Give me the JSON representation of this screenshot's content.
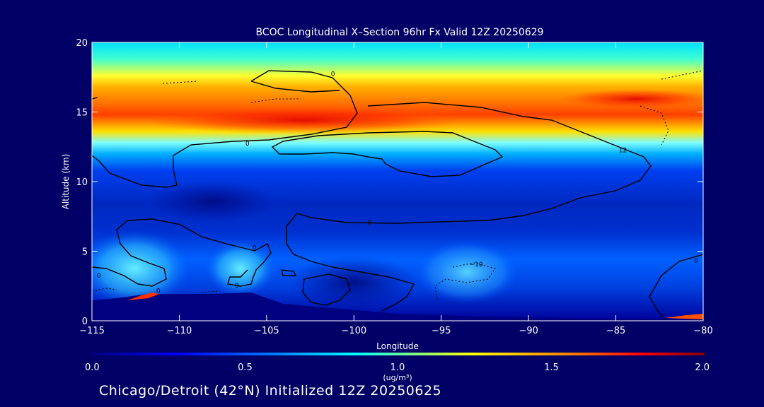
{
  "chart_data": {
    "type": "heatmap",
    "title": "BCOC Longitudinal X–Section 96hr  Fx Valid 12Z 20250629",
    "xlabel": "Longitude",
    "ylabel": "Altitude (km)",
    "xlim": [
      -115,
      -80
    ],
    "ylim": [
      0,
      20
    ],
    "x_ticks": [
      -115,
      -110,
      -105,
      -100,
      -95,
      -90,
      -85,
      -80
    ],
    "x_tick_labels": [
      "−115",
      "−110",
      "−105",
      "−100",
      "−95",
      "−90",
      "−85",
      "−80"
    ],
    "y_ticks": [
      0,
      5,
      10,
      15,
      20
    ],
    "y_tick_labels": [
      "0",
      "5",
      "10",
      "15",
      "20"
    ],
    "colorbar": {
      "min": 0.0,
      "max": 2.0,
      "ticks": [
        0.0,
        0.5,
        1.0,
        1.5,
        2.0
      ],
      "tick_labels": [
        "0.0",
        "0.5",
        "1.0",
        "1.5",
        "2.0"
      ],
      "label_line1": "1.0",
      "label_line2": "(ug/m³)",
      "colors": [
        "#000080",
        "#0000ff",
        "#0080ff",
        "#00ffff",
        "#ffff00",
        "#ff8000",
        "#ff0000",
        "#800000"
      ]
    },
    "concentration_bands": [
      {
        "alt_min": 0,
        "alt_max": 1.5,
        "value": 0.12
      },
      {
        "alt_min": 1.5,
        "alt_max": 5.0,
        "value": 0.4
      },
      {
        "alt_min": 5.0,
        "alt_max": 9.5,
        "value": 0.3
      },
      {
        "alt_min": 9.5,
        "alt_max": 11.5,
        "value": 0.35
      },
      {
        "alt_min": 11.5,
        "alt_max": 13.0,
        "value": 0.8
      },
      {
        "alt_min": 13.0,
        "alt_max": 15.5,
        "value": 1.55
      },
      {
        "alt_min": 15.5,
        "alt_max": 17.5,
        "value": 1.05
      },
      {
        "alt_min": 17.5,
        "alt_max": 20.0,
        "value": 0.65
      }
    ],
    "contour_labels": [
      {
        "text": "0",
        "lon": -101.2,
        "alt": 17.8
      },
      {
        "text": "0",
        "lon": -106.1,
        "alt": 12.8
      },
      {
        "text": "0",
        "lon": -99.1,
        "alt": 7.1
      },
      {
        "text": "0",
        "lon": -105.7,
        "alt": 5.3
      },
      {
        "text": "0",
        "lon": -114.6,
        "alt": 3.3
      },
      {
        "text": "0",
        "lon": -111.2,
        "alt": 2.2
      },
      {
        "text": "0",
        "lon": -106.7,
        "alt": 2.6
      },
      {
        "text": "−10",
        "lon": -93.0,
        "alt": 4.1
      },
      {
        "text": "0",
        "lon": -80.4,
        "alt": 4.4
      },
      {
        "text": "12",
        "lon": -84.6,
        "alt": 12.3
      }
    ]
  },
  "footer_text": "Chicago/Detroit (42°N) Initialized 12Z 20250625"
}
